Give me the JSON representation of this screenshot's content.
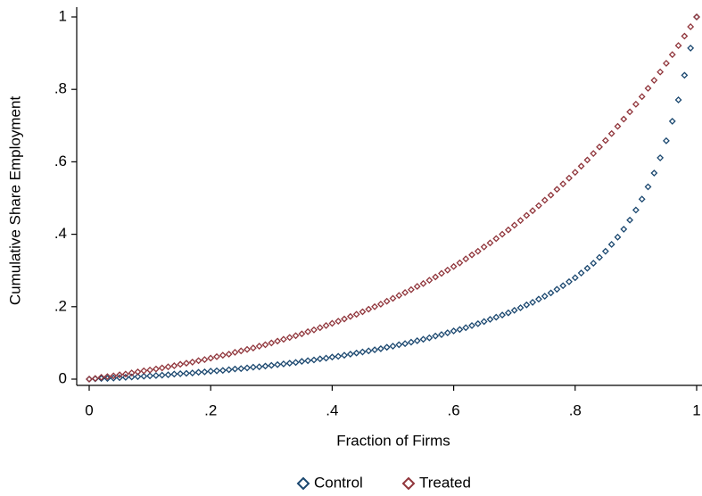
{
  "chart_data": {
    "type": "scatter",
    "x_label": "Fraction of Firms",
    "y_label": "Cumulative Share Employment",
    "xlim": [
      0,
      1
    ],
    "ylim": [
      0,
      1
    ],
    "xticks": [
      0,
      {
        "value": 0.2,
        "label": ".2"
      },
      {
        "value": 0.4,
        "label": ".4"
      },
      {
        "value": 0.6,
        "label": ".6"
      },
      {
        "value": 0.8,
        "label": ".8"
      },
      1
    ],
    "yticks": [
      0,
      {
        "value": 0.2,
        "label": ".2"
      },
      {
        "value": 0.4,
        "label": ".4"
      },
      {
        "value": 0.6,
        "label": ".6"
      },
      {
        "value": 0.8,
        "label": ".8"
      },
      1
    ],
    "legend": "bottom",
    "x": [
      0,
      0.01,
      0.02,
      0.03,
      0.04,
      0.05,
      0.06,
      0.07,
      0.08,
      0.09,
      0.1,
      0.11,
      0.12,
      0.13,
      0.14,
      0.15,
      0.16,
      0.17,
      0.18,
      0.19,
      0.2,
      0.21,
      0.22,
      0.23,
      0.24,
      0.25,
      0.26,
      0.27,
      0.28,
      0.29,
      0.3,
      0.31,
      0.32,
      0.33,
      0.34,
      0.35,
      0.36,
      0.37,
      0.38,
      0.39,
      0.4,
      0.41,
      0.42,
      0.43,
      0.44,
      0.45,
      0.46,
      0.47,
      0.48,
      0.49,
      0.5,
      0.51,
      0.52,
      0.53,
      0.54,
      0.55,
      0.56,
      0.57,
      0.58,
      0.59,
      0.6,
      0.61,
      0.62,
      0.63,
      0.64,
      0.65,
      0.66,
      0.67,
      0.68,
      0.69,
      0.7,
      0.71,
      0.72,
      0.73,
      0.74,
      0.75,
      0.76,
      0.77,
      0.78,
      0.79,
      0.8,
      0.81,
      0.82,
      0.83,
      0.84,
      0.85,
      0.86,
      0.87,
      0.88,
      0.89,
      0.9,
      0.91,
      0.92,
      0.93,
      0.94,
      0.95,
      0.96,
      0.97,
      0.98,
      0.99,
      1
    ],
    "series": [
      {
        "name": "Control",
        "color": "#1a476f",
        "values": [
          0,
          0.001,
          0.002,
          0.002,
          0.003,
          0.004,
          0.005,
          0.006,
          0.007,
          0.008,
          0.009,
          0.01,
          0.011,
          0.012,
          0.014,
          0.015,
          0.016,
          0.017,
          0.019,
          0.02,
          0.022,
          0.023,
          0.024,
          0.026,
          0.028,
          0.029,
          0.031,
          0.033,
          0.034,
          0.036,
          0.038,
          0.04,
          0.042,
          0.044,
          0.046,
          0.049,
          0.051,
          0.053,
          0.056,
          0.058,
          0.061,
          0.063,
          0.066,
          0.069,
          0.072,
          0.075,
          0.078,
          0.081,
          0.084,
          0.088,
          0.091,
          0.095,
          0.098,
          0.102,
          0.106,
          0.11,
          0.114,
          0.119,
          0.123,
          0.128,
          0.133,
          0.137,
          0.142,
          0.148,
          0.153,
          0.159,
          0.165,
          0.171,
          0.177,
          0.183,
          0.19,
          0.197,
          0.205,
          0.212,
          0.221,
          0.229,
          0.238,
          0.248,
          0.258,
          0.269,
          0.28,
          0.293,
          0.306,
          0.32,
          0.336,
          0.353,
          0.372,
          0.392,
          0.414,
          0.439,
          0.467,
          0.497,
          0.531,
          0.569,
          0.611,
          0.658,
          0.712,
          0.771,
          0.839,
          0.914,
          1.0
        ]
      },
      {
        "name": "Treated",
        "color": "#90353b",
        "values": [
          0,
          0.002,
          0.005,
          0.007,
          0.009,
          0.012,
          0.014,
          0.017,
          0.02,
          0.023,
          0.025,
          0.028,
          0.031,
          0.034,
          0.037,
          0.041,
          0.044,
          0.047,
          0.051,
          0.054,
          0.058,
          0.062,
          0.066,
          0.069,
          0.074,
          0.078,
          0.082,
          0.086,
          0.091,
          0.095,
          0.1,
          0.105,
          0.11,
          0.115,
          0.12,
          0.125,
          0.131,
          0.136,
          0.142,
          0.148,
          0.154,
          0.16,
          0.166,
          0.173,
          0.179,
          0.186,
          0.193,
          0.2,
          0.207,
          0.215,
          0.223,
          0.231,
          0.239,
          0.247,
          0.256,
          0.264,
          0.273,
          0.282,
          0.292,
          0.301,
          0.311,
          0.321,
          0.332,
          0.343,
          0.353,
          0.365,
          0.376,
          0.388,
          0.4,
          0.412,
          0.425,
          0.438,
          0.452,
          0.465,
          0.479,
          0.494,
          0.508,
          0.524,
          0.539,
          0.555,
          0.571,
          0.588,
          0.605,
          0.623,
          0.641,
          0.659,
          0.678,
          0.698,
          0.718,
          0.738,
          0.759,
          0.78,
          0.803,
          0.825,
          0.848,
          0.872,
          0.896,
          0.921,
          0.947,
          0.973,
          1.0
        ]
      }
    ]
  }
}
